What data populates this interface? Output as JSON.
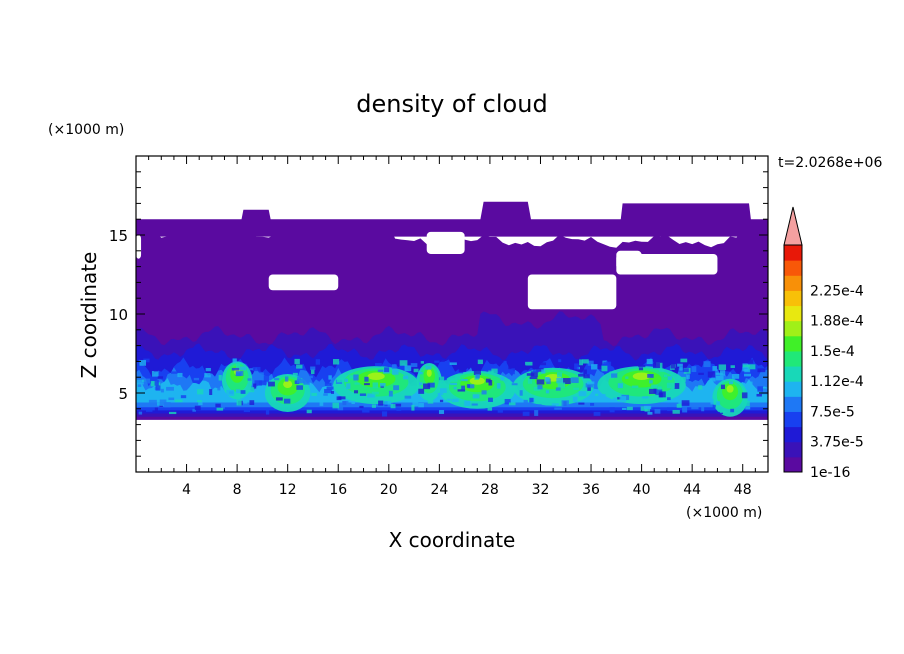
{
  "chart_data": {
    "type": "heatmap",
    "title": "density of cloud",
    "xlabel": "X coordinate",
    "ylabel": "Z coordinate",
    "x_unit": "(×1000 m)",
    "y_unit": "(×1000 m)",
    "time_label": "t=2.0268e+06",
    "xlim": [
      0,
      50
    ],
    "ylim": [
      0,
      20
    ],
    "x_ticks": [
      4,
      8,
      12,
      16,
      20,
      24,
      28,
      32,
      36,
      40,
      44,
      48
    ],
    "y_ticks": [
      5,
      10,
      15
    ],
    "colorbar": {
      "labels": [
        "1e-16",
        "3.75e-5",
        "7.5e-5",
        "1.12e-4",
        "1.5e-4",
        "1.88e-4",
        "2.25e-4"
      ],
      "colors": [
        "#5a0aa0",
        "#3a12b8",
        "#1f1ad6",
        "#1840f0",
        "#1e78f5",
        "#1eb4f0",
        "#18d8b8",
        "#20e878",
        "#40f028",
        "#a0f018",
        "#e8e810",
        "#f8c008",
        "#f89008",
        "#f85808",
        "#e81808"
      ],
      "overflow_color": "#f4a0a0"
    },
    "cloud_layers": [
      {
        "level": 0,
        "description_range_km": [
          3.3,
          15.2
        ]
      },
      {
        "level": 1,
        "range_km": [
          3.6,
          8.5
        ]
      },
      {
        "level": 2,
        "range_km": [
          3.8,
          7.5
        ]
      },
      {
        "level": 3,
        "range_km": [
          4.0,
          6.5
        ]
      },
      {
        "level": 6,
        "range_km": [
          4.4,
          6.2
        ]
      },
      {
        "level": 8,
        "range_km": [
          5.2,
          6.0
        ]
      }
    ]
  }
}
